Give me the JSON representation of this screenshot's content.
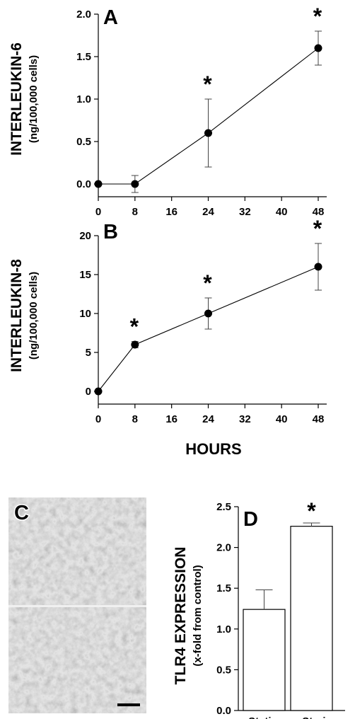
{
  "figure": {
    "x_axis_label": "HOURS",
    "micrograph_label": "C"
  },
  "chart_data": [
    {
      "panel": "A",
      "type": "line",
      "ylabel": "INTERLEUKIN-6",
      "ylabel_sub": "(ng/100,000 cells)",
      "x": [
        0,
        8,
        24,
        48
      ],
      "y": [
        0.0,
        0.0,
        0.6,
        1.6
      ],
      "error": [
        0,
        0.1,
        0.4,
        0.2
      ],
      "significant": [
        false,
        false,
        true,
        true
      ],
      "xlim": [
        0,
        48
      ],
      "ylim": [
        0,
        2.0
      ],
      "xticks": [
        "0",
        "8",
        "16",
        "24",
        "32",
        "40",
        "48"
      ],
      "yticks": [
        "0.0",
        "0.5",
        "1.0",
        "1.5",
        "2.0"
      ],
      "star": "*"
    },
    {
      "panel": "B",
      "type": "line",
      "ylabel": "INTERLEUKIN-8",
      "ylabel_sub": "(ng/100,000 cells)",
      "x": [
        0,
        8,
        24,
        48
      ],
      "y": [
        0,
        6,
        10,
        16
      ],
      "error": [
        0,
        0.4,
        2,
        3
      ],
      "significant": [
        false,
        true,
        true,
        true
      ],
      "xlim": [
        0,
        48
      ],
      "ylim": [
        0,
        20
      ],
      "xticks": [
        "0",
        "8",
        "16",
        "24",
        "32",
        "40",
        "48"
      ],
      "yticks": [
        "0",
        "5",
        "10",
        "15",
        "20"
      ],
      "star": "*"
    },
    {
      "panel": "D",
      "type": "bar",
      "ylabel": "TLR4 EXPRESSION",
      "ylabel_sub": "(x-fold from control)",
      "categories": [
        "Static",
        "Strain"
      ],
      "values": [
        1.24,
        2.26
      ],
      "error": [
        0.24,
        0.04
      ],
      "significant": [
        false,
        true
      ],
      "ylim": [
        0,
        2.5
      ],
      "yticks": [
        "0.0",
        "0.5",
        "1.0",
        "1.5",
        "2.0",
        "2.5"
      ],
      "star": "*"
    }
  ]
}
